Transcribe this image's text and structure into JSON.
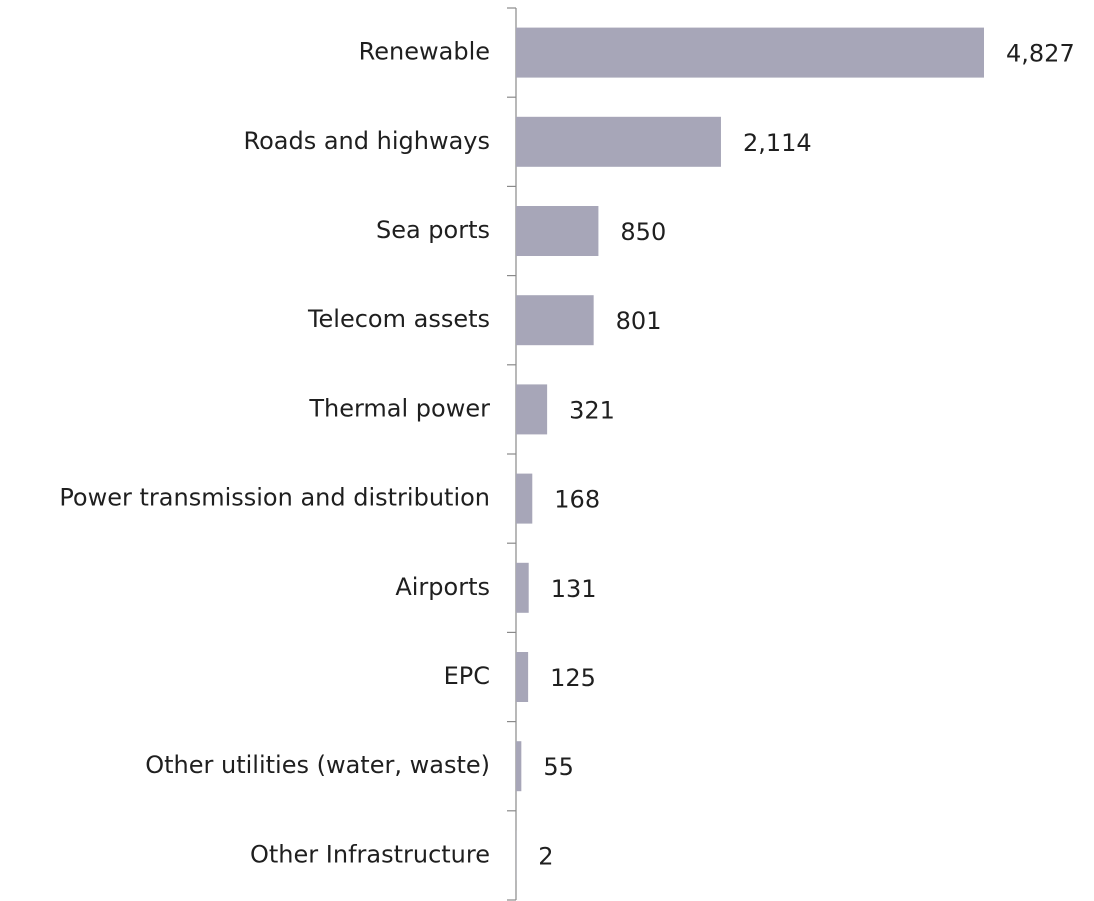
{
  "chart_data": {
    "type": "hbar",
    "categories": [
      "Renewable",
      "Roads and highways",
      "Sea ports",
      "Telecom assets",
      "Thermal power",
      "Power transmission and distribution",
      "Airports",
      "EPC",
      "Other utilities (water, waste)",
      "Other Infrastructure"
    ],
    "values": [
      4827,
      2114,
      850,
      801,
      321,
      168,
      131,
      125,
      55,
      2
    ],
    "value_labels": [
      "4,827",
      "2,114",
      "850",
      "801",
      "321",
      "168",
      "131",
      "125",
      "55",
      "2"
    ],
    "color": "#a7a6b8"
  }
}
